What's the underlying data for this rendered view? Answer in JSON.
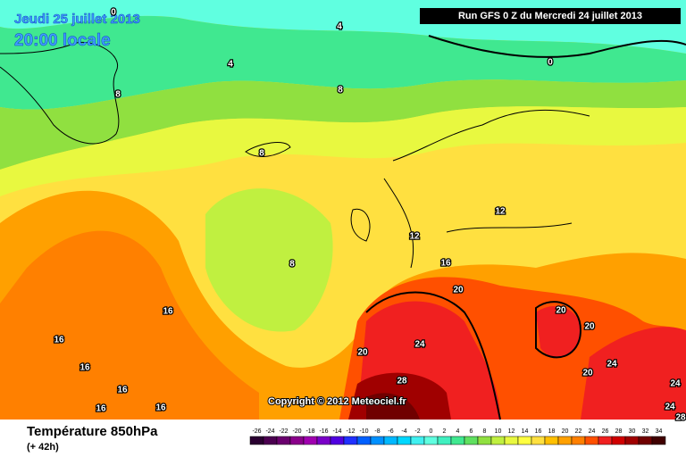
{
  "header": {
    "date": "Jeudi 25 juillet 2013",
    "time": "20:00 locale",
    "run": "Run GFS 0 Z du Mercredi 24 juillet 2013"
  },
  "map": {
    "contour_labels": [
      0,
      4,
      4,
      0,
      8,
      8,
      8,
      12,
      12,
      8,
      16,
      20,
      16,
      16,
      24,
      20,
      20,
      20,
      16,
      16,
      16,
      16,
      28,
      24,
      20,
      24,
      24,
      28
    ],
    "copyright": "Copyright © 2012 Meteociel.fr"
  },
  "footer": {
    "title": "Température 850hPa",
    "lead": "(+ 42h)"
  },
  "legend": {
    "values": [
      -26,
      -24,
      -22,
      -20,
      -18,
      -16,
      -14,
      -12,
      -10,
      -8,
      -6,
      -4,
      -2,
      0,
      2,
      4,
      6,
      8,
      10,
      12,
      14,
      16,
      18,
      20,
      22,
      24,
      26,
      28,
      30,
      32,
      34
    ],
    "colors": [
      "#2a0030",
      "#4b0050",
      "#6a006e",
      "#8a008a",
      "#a000b0",
      "#7a00c8",
      "#5000e0",
      "#2030ff",
      "#0060ff",
      "#0090ff",
      "#00b8ff",
      "#00d8ff",
      "#40f0f0",
      "#60ffe0",
      "#40f0c0",
      "#40e890",
      "#60e060",
      "#90e040",
      "#c0f040",
      "#e8f840",
      "#ffff40",
      "#ffe040",
      "#ffc000",
      "#ffa000",
      "#ff8000",
      "#ff5000",
      "#f02020",
      "#d00000",
      "#a00000",
      "#700000",
      "#400000"
    ]
  }
}
